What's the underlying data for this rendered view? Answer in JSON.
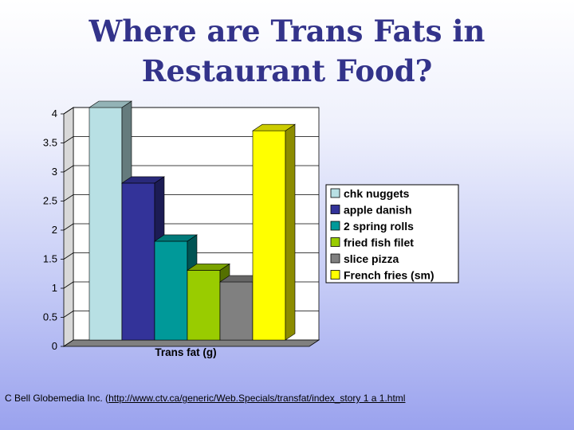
{
  "title_line1": "Where are Trans Fats in",
  "title_line2": "Restaurant Food?",
  "source": {
    "prefix": "C Bell Globemedia Inc. (",
    "link": "http://www.ctv.ca/generic/Web.Specials/transfat/index_story 1 a 1.html"
  },
  "chart_data": {
    "type": "bar",
    "title": "",
    "xlabel": "Trans fat (g)",
    "ylabel": "",
    "ylim": [
      0,
      4
    ],
    "yticks": [
      "0",
      "0.5",
      "1",
      "1.5",
      "2",
      "2.5",
      "3",
      "3.5",
      "4"
    ],
    "grid": true,
    "legend_position": "right",
    "series": [
      {
        "name": "chk nuggets",
        "values": [
          4.0
        ],
        "color": "#b8e0e4"
      },
      {
        "name": "apple danish",
        "values": [
          2.7
        ],
        "color": "#333399"
      },
      {
        "name": "2 spring rolls",
        "values": [
          1.7
        ],
        "color": "#009999"
      },
      {
        "name": "fried fish filet",
        "values": [
          1.2
        ],
        "color": "#99cc00"
      },
      {
        "name": "slice pizza",
        "values": [
          1.0
        ],
        "color": "#808080"
      },
      {
        "name": "French fries (sm)",
        "values": [
          3.6
        ],
        "color": "#ffff00"
      }
    ]
  }
}
